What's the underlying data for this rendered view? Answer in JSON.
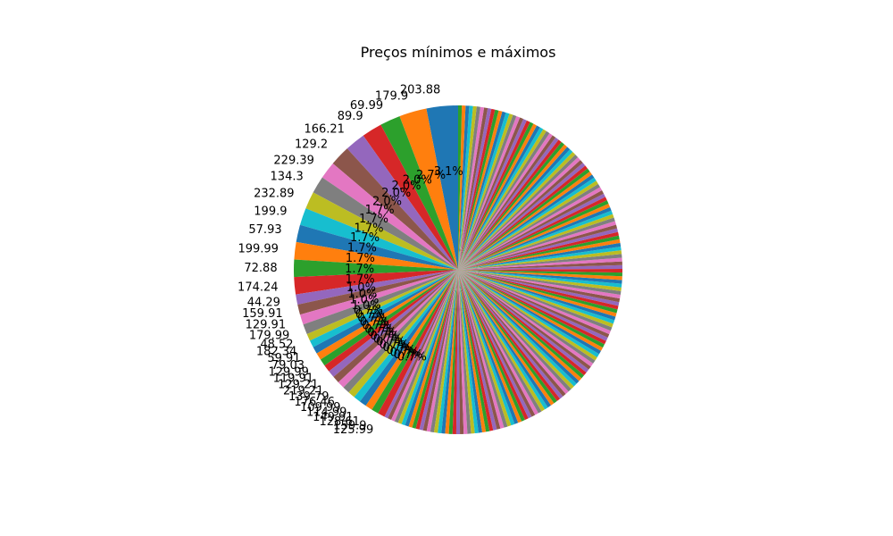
{
  "chart_data": {
    "type": "pie",
    "title": "Preços mínimos e máximos",
    "start_angle_deg": 90,
    "direction": "counterclockwise",
    "colors": [
      "#1f77b4",
      "#ff7f0e",
      "#2ca02c",
      "#d62728",
      "#9467bd",
      "#8c564b",
      "#e377c2",
      "#7f7f7f",
      "#bcbd22",
      "#17becf"
    ],
    "slices": [
      {
        "label": "203.88",
        "value": 203.88,
        "pct": "3.1%"
      },
      {
        "label": "179.9",
        "value": 179.9,
        "pct": "2.7%"
      },
      {
        "label": "69.99",
        "value": 69.99,
        "pct": "2.0%"
      },
      {
        "label": "89.9",
        "value": 89.9,
        "pct": "2.0%"
      },
      {
        "label": "166.21",
        "value": 166.21,
        "pct": "2.0%"
      },
      {
        "label": "129.2",
        "value": 129.2,
        "pct": "2.0%"
      },
      {
        "label": "229.39",
        "value": 229.39,
        "pct": "1.7%"
      },
      {
        "label": "134.3",
        "value": 134.3,
        "pct": "1.7%"
      },
      {
        "label": "232.89",
        "value": 232.89,
        "pct": "1.7%"
      },
      {
        "label": "199.9",
        "value": 199.9,
        "pct": "1.7%"
      },
      {
        "label": "57.93",
        "value": 57.93,
        "pct": "1.7%"
      },
      {
        "label": "199.99",
        "value": 199.99,
        "pct": "1.7%"
      },
      {
        "label": "72.88",
        "value": 72.88,
        "pct": "1.7%"
      },
      {
        "label": "174.24",
        "value": 174.24,
        "pct": "1.7%"
      },
      {
        "label": "44.29",
        "value": 44.29,
        "pct": "1.0%"
      },
      {
        "label": "159.91",
        "value": 159.91,
        "pct": "1.0%"
      },
      {
        "label": "129.91",
        "value": 129.91,
        "pct": "1.0%"
      },
      {
        "label": "179.99",
        "value": 179.99,
        "pct": "1.0%"
      },
      {
        "label": "48.52",
        "value": 48.52,
        "pct": "0.7%"
      },
      {
        "label": "182.34",
        "value": 182.34,
        "pct": "0.7%"
      },
      {
        "label": "59.91",
        "value": 59.91,
        "pct": "0.7%"
      },
      {
        "label": "79.03",
        "value": 79.03,
        "pct": "0.7%"
      },
      {
        "label": "129.99",
        "value": 129.99,
        "pct": "0.7%"
      },
      {
        "label": "119.91",
        "value": 119.91,
        "pct": "0.7%"
      },
      {
        "label": "129.21",
        "value": 129.21,
        "pct": "0.7%"
      },
      {
        "label": "219.21",
        "value": 219.21,
        "pct": "0.7%"
      },
      {
        "label": "139.79",
        "value": 139.79,
        "pct": "0.7%"
      },
      {
        "label": "176.46",
        "value": 176.46,
        "pct": "0.7%"
      },
      {
        "label": "109.99",
        "value": 109.99,
        "pct": "0.7%"
      },
      {
        "label": "114.99",
        "value": 114.99,
        "pct": "0.7%"
      },
      {
        "label": "149.91",
        "value": 149.91,
        "pct": "0.7%"
      },
      {
        "label": "128.61",
        "value": 128.61,
        "pct": "0.7%"
      },
      {
        "label": "159.9",
        "value": 159.9,
        "pct": "0.7%"
      },
      {
        "label": "125.99",
        "value": 125.99,
        "pct": "0.7%"
      }
    ]
  }
}
